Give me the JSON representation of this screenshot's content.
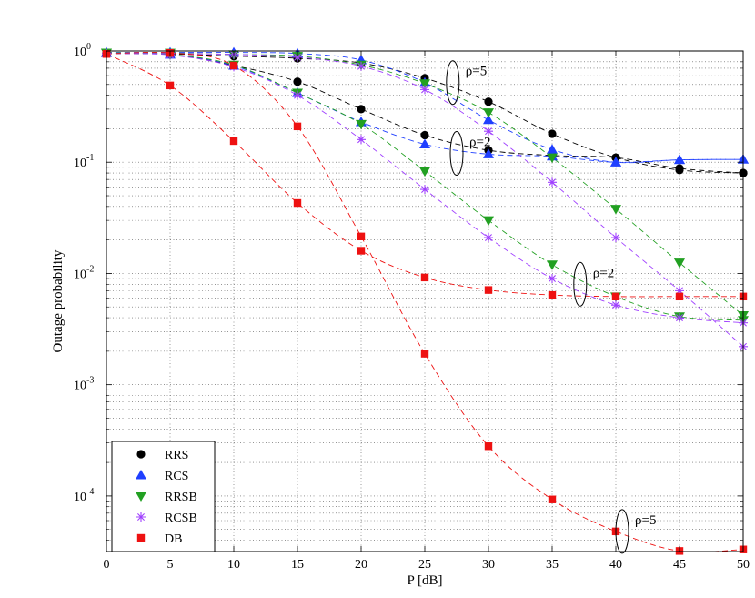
{
  "chart_data": {
    "type": "scatter",
    "xlabel": "P [dB]",
    "ylabel": "Outage probability",
    "xlim": [
      0,
      50
    ],
    "ylim_log10": [
      -4.5,
      0
    ],
    "yscale": "log",
    "grid": true,
    "legend_position": "bottom-left",
    "x_ticks": [
      {
        "value": 0,
        "label": "0"
      },
      {
        "value": 5,
        "label": "5"
      },
      {
        "value": 10,
        "label": "10"
      },
      {
        "value": 15,
        "label": "15"
      },
      {
        "value": 20,
        "label": "20"
      },
      {
        "value": 25,
        "label": "25"
      },
      {
        "value": 30,
        "label": "30"
      },
      {
        "value": 35,
        "label": "35"
      },
      {
        "value": 40,
        "label": "40"
      },
      {
        "value": 45,
        "label": "45"
      },
      {
        "value": 50,
        "label": "50"
      }
    ],
    "y_ticks": [
      {
        "exp": 0,
        "base": "10",
        "sup": "0"
      },
      {
        "exp": -1,
        "base": "10",
        "sup": "-1"
      },
      {
        "exp": -2,
        "base": "10",
        "sup": "-2"
      },
      {
        "exp": -3,
        "base": "10",
        "sup": "-3"
      },
      {
        "exp": -4,
        "base": "10",
        "sup": "-4"
      }
    ],
    "x": [
      0,
      5,
      10,
      15,
      20,
      25,
      30,
      35,
      40,
      45,
      50
    ],
    "series": [
      {
        "name": "RRS",
        "group": "rho=5",
        "color": "#000000",
        "marker": "circle",
        "values": [
          0.95,
          0.94,
          0.9,
          0.86,
          0.78,
          0.57,
          0.35,
          0.18,
          0.11,
          0.085,
          0.08
        ]
      },
      {
        "name": "RRS",
        "group": "rho=2",
        "color": "#000000",
        "marker": "circle",
        "values": [
          0.96,
          0.93,
          0.74,
          0.53,
          0.3,
          0.175,
          0.128,
          0.115,
          0.11,
          0.088,
          0.08
        ]
      },
      {
        "name": "RCS",
        "group": "rho=5",
        "color": "#1f3fff",
        "marker": "triangle-up",
        "values": [
          0.97,
          0.97,
          0.97,
          0.95,
          0.83,
          0.52,
          0.24,
          0.13,
          0.1,
          0.105,
          0.106
        ]
      },
      {
        "name": "RCS",
        "group": "rho=2",
        "color": "#1f3fff",
        "marker": "triangle-up",
        "values": [
          0.96,
          0.93,
          0.74,
          0.42,
          0.23,
          0.145,
          0.118,
          0.113,
          0.1,
          0.105,
          0.106
        ]
      },
      {
        "name": "RRSB",
        "group": "rho=5",
        "color": "#22a022",
        "marker": "triangle-down",
        "values": [
          0.96,
          0.96,
          0.93,
          0.9,
          0.75,
          0.51,
          0.28,
          0.11,
          0.038,
          0.0125,
          0.0042
        ]
      },
      {
        "name": "RRSB",
        "group": "rho=2",
        "color": "#22a022",
        "marker": "triangle-down",
        "values": [
          0.96,
          0.93,
          0.75,
          0.42,
          0.22,
          0.083,
          0.03,
          0.012,
          0.0062,
          0.0041,
          0.0038
        ]
      },
      {
        "name": "RCSB",
        "group": "rho=5",
        "color": "#a040ff",
        "marker": "asterisk",
        "values": [
          0.95,
          0.95,
          0.93,
          0.88,
          0.73,
          0.45,
          0.19,
          0.066,
          0.021,
          0.007,
          0.0022
        ]
      },
      {
        "name": "RCSB",
        "group": "rho=2",
        "color": "#a040ff",
        "marker": "asterisk",
        "values": [
          0.95,
          0.92,
          0.72,
          0.4,
          0.16,
          0.057,
          0.021,
          0.009,
          0.0052,
          0.004,
          0.0036
        ]
      },
      {
        "name": "DB",
        "group": "rho=2",
        "color": "#ee1111",
        "marker": "square",
        "values": [
          0.94,
          0.49,
          0.155,
          0.043,
          0.016,
          0.0092,
          0.0071,
          0.0064,
          0.0062,
          0.0062,
          0.0062
        ]
      },
      {
        "name": "DB",
        "group": "rho=5",
        "color": "#ee1111",
        "marker": "square",
        "values": [
          0.94,
          0.96,
          0.74,
          0.21,
          0.0215,
          0.0019,
          0.00028,
          9.3e-05,
          4.8e-05,
          3.2e-05,
          3.3e-05
        ]
      }
    ],
    "legend": [
      {
        "name": "RRS",
        "marker": "circle",
        "color": "#000000"
      },
      {
        "name": "RCS",
        "marker": "triangle-up",
        "color": "#1f3fff"
      },
      {
        "name": "RRSB",
        "marker": "triangle-down",
        "color": "#22a022"
      },
      {
        "name": "RCSB",
        "marker": "asterisk",
        "color": "#a040ff"
      },
      {
        "name": "DB",
        "marker": "square",
        "color": "#ee1111"
      }
    ],
    "annotations": [
      {
        "text": "ρ=5",
        "x": 27.2,
        "y": 0.52
      },
      {
        "text": "ρ=2",
        "x": 27.5,
        "y": 0.12
      },
      {
        "text": "ρ=2",
        "x": 37.2,
        "y": 0.008
      },
      {
        "text": "ρ=5",
        "x": 40.5,
        "y": 4.8e-05
      }
    ]
  }
}
